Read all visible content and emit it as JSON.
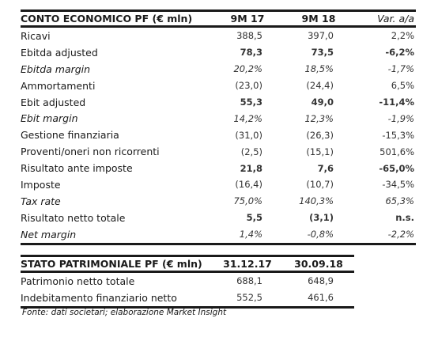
{
  "income_statement": {
    "headers": [
      "CONTO ECONOMICO PF (€ mln)",
      "9M 17",
      "9M 18",
      "Var. a/a"
    ],
    "rows": [
      {
        "label": "Ricavi",
        "v1": "388,5",
        "v2": "397,0",
        "var": "2,2%",
        "style": ""
      },
      {
        "label": "Ebitda adjusted",
        "v1": "78,3",
        "v2": "73,5",
        "var": "-6,2%",
        "style": "bold"
      },
      {
        "label": "Ebitda margin",
        "v1": "20,2%",
        "v2": "18,5%",
        "var": "-1,7%",
        "style": "ital"
      },
      {
        "label": "Ammortamenti",
        "v1": "(23,0)",
        "v2": "(24,4)",
        "var": "6,5%",
        "style": ""
      },
      {
        "label": "Ebit adjusted",
        "v1": "55,3",
        "v2": "49,0",
        "var": "-11,4%",
        "style": "bold"
      },
      {
        "label": "Ebit margin",
        "v1": "14,2%",
        "v2": "12,3%",
        "var": "-1,9%",
        "style": "ital"
      },
      {
        "label": "Gestione finanziaria",
        "v1": "(31,0)",
        "v2": "(26,3)",
        "var": "-15,3%",
        "style": ""
      },
      {
        "label": "Proventi/oneri non ricorrenti",
        "v1": "(2,5)",
        "v2": "(15,1)",
        "var": "501,6%",
        "style": ""
      },
      {
        "label": "Risultato ante imposte",
        "v1": "21,8",
        "v2": "7,6",
        "var": "-65,0%",
        "style": "bold"
      },
      {
        "label": "Imposte",
        "v1": "(16,4)",
        "v2": "(10,7)",
        "var": "-34,5%",
        "style": ""
      },
      {
        "label": "Tax rate",
        "v1": "75,0%",
        "v2": "140,3%",
        "var": "65,3%",
        "style": "ital"
      },
      {
        "label": "Risultato netto totale",
        "v1": "5,5",
        "v2": "(3,1)",
        "var": "n.s.",
        "style": "bold"
      },
      {
        "label": "Net margin",
        "v1": "1,4%",
        "v2": "-0,8%",
        "var": "-2,2%",
        "style": "ital"
      }
    ]
  },
  "balance_sheet": {
    "headers": [
      "STATO PATRIMONIALE PF (€ mln)",
      "31.12.17",
      "30.09.18"
    ],
    "rows": [
      {
        "label": "Patrimonio netto totale",
        "v1": "688,1",
        "v2": "648,9"
      },
      {
        "label": "Indebitamento finanziario netto",
        "v1": "552,5",
        "v2": "461,6"
      }
    ]
  },
  "source_note": "Fonte: dati societari; elaborazione Market Insight"
}
